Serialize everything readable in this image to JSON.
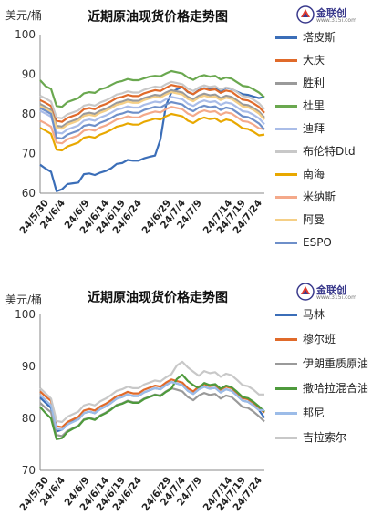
{
  "logo": {
    "brand": "金联创",
    "url": "www.315i.com"
  },
  "chart_data": [
    {
      "type": "line",
      "title": "近期原油现货价格走势图",
      "ylabel": "美元/桶",
      "ylim": [
        60,
        100
      ],
      "yticks": [
        60,
        70,
        80,
        90,
        100
      ],
      "grid": false,
      "legend": "right",
      "x": [
        "24/5/30",
        "24/5/31",
        "24/6/3",
        "24/6/4",
        "24/6/5",
        "24/6/6",
        "24/6/7",
        "24/6/10",
        "24/6/11",
        "24/6/12",
        "24/6/13",
        "24/6/14",
        "24/6/17",
        "24/6/18",
        "24/6/19",
        "24/6/20",
        "24/6/21",
        "24/6/24",
        "24/6/25",
        "24/6/26",
        "24/6/27",
        "24/6/28",
        "24/7/1",
        "24/7/2",
        "24/7/3",
        "24/7/4",
        "24/7/5",
        "24/7/8",
        "24/7/9",
        "24/7/10",
        "24/7/11",
        "24/7/12",
        "24/7/15",
        "24/7/16",
        "24/7/17",
        "24/7/18",
        "24/7/19",
        "24/7/22",
        "24/7/23",
        "24/7/24",
        "24/7/25",
        "24/7/26"
      ],
      "xtick_labels": [
        "24/5/30",
        "24/6/4",
        "24/6/9",
        "24/6/14",
        "24/6/19",
        "24/6/24",
        "24/6/29",
        "24/7/4",
        "24/7/9",
        "24/7/14",
        "24/7/19",
        "24/7/24"
      ],
      "series": [
        {
          "name": "塔皮斯",
          "color": "#3b6eb8",
          "values": [
            67.2,
            66.2,
            65.4,
            60.5,
            61.0,
            62.3,
            62.5,
            62.7,
            64.8,
            65.0,
            64.6,
            65.2,
            65.6,
            66.3,
            67.4,
            67.6,
            68.4,
            68.2,
            68.2,
            68.8,
            69.2,
            69.5,
            73.6,
            82.1,
            85.4,
            86.2,
            86.8,
            85.5,
            85.0,
            86.0,
            86.5,
            86.2,
            86.4,
            85.8,
            86.6,
            86.3,
            85.6,
            85.0,
            84.8,
            84.4,
            84.0,
            84.3
          ]
        },
        {
          "name": "大庆",
          "color": "#e06a2a",
          "values": [
            83.5,
            82.8,
            82.0,
            78.3,
            78.0,
            79.0,
            79.5,
            80.0,
            81.2,
            81.5,
            81.2,
            82.0,
            82.5,
            83.2,
            84.0,
            84.3,
            84.8,
            84.5,
            84.5,
            85.2,
            85.6,
            86.0,
            85.8,
            86.6,
            87.3,
            87.0,
            86.8,
            85.6,
            85.0,
            85.9,
            86.4,
            86.0,
            86.2,
            85.3,
            85.9,
            85.6,
            84.6,
            83.6,
            83.4,
            82.7,
            81.8,
            80.3
          ]
        },
        {
          "name": "胜利",
          "color": "#9a9a9a",
          "values": [
            82.5,
            81.8,
            81.0,
            77.0,
            76.8,
            77.8,
            78.3,
            78.8,
            80.0,
            80.3,
            80.0,
            80.8,
            81.3,
            82.0,
            82.8,
            83.1,
            83.6,
            83.3,
            83.3,
            84.0,
            84.4,
            84.8,
            84.6,
            85.4,
            86.0,
            85.7,
            85.4,
            84.3,
            83.7,
            84.6,
            85.1,
            84.7,
            84.9,
            84.0,
            84.6,
            84.3,
            83.4,
            82.4,
            82.2,
            81.5,
            80.6,
            79.1
          ]
        },
        {
          "name": "杜里",
          "color": "#6aa84f",
          "values": [
            88.5,
            87.0,
            86.3,
            82.0,
            81.8,
            83.0,
            83.5,
            84.0,
            85.2,
            85.5,
            85.3,
            86.2,
            86.6,
            87.3,
            88.0,
            88.3,
            88.8,
            88.5,
            88.5,
            89.0,
            89.4,
            89.6,
            89.5,
            90.2,
            90.8,
            90.5,
            90.2,
            89.2,
            88.6,
            89.4,
            89.8,
            89.4,
            89.6,
            88.7,
            89.2,
            88.9,
            88.0,
            87.1,
            86.9,
            86.2,
            85.4,
            84.2
          ]
        },
        {
          "name": "迪拜",
          "color": "#aabde8",
          "values": [
            80.8,
            80.1,
            79.3,
            75.3,
            75.1,
            76.1,
            76.6,
            77.1,
            78.3,
            78.6,
            78.3,
            79.1,
            79.6,
            80.3,
            81.1,
            81.4,
            81.9,
            81.6,
            81.6,
            82.3,
            82.7,
            83.1,
            82.9,
            83.7,
            84.3,
            84.0,
            83.7,
            82.6,
            82.0,
            82.9,
            83.4,
            83.0,
            83.2,
            82.3,
            82.9,
            82.6,
            81.7,
            80.7,
            80.5,
            79.8,
            78.9,
            77.4
          ]
        },
        {
          "name": "布伦特Dtd",
          "color": "#c8c8c8",
          "values": [
            84.6,
            83.9,
            83.1,
            79.1,
            78.9,
            79.9,
            80.4,
            80.9,
            82.1,
            82.4,
            82.1,
            82.9,
            83.4,
            84.1,
            84.9,
            85.2,
            85.7,
            85.4,
            85.4,
            86.1,
            86.5,
            86.9,
            86.7,
            87.5,
            88.1,
            87.8,
            87.5,
            86.4,
            85.8,
            86.7,
            87.2,
            86.8,
            87.0,
            86.1,
            86.7,
            86.4,
            85.5,
            84.5,
            84.3,
            83.6,
            82.7,
            81.2
          ]
        },
        {
          "name": "南海",
          "color": "#e8a800",
          "values": [
            76.5,
            75.8,
            75.0,
            71.0,
            70.8,
            71.8,
            72.3,
            72.8,
            74.0,
            74.3,
            74.0,
            74.8,
            75.3,
            76.0,
            76.8,
            77.1,
            77.6,
            77.3,
            77.3,
            78.0,
            78.4,
            78.8,
            78.6,
            79.4,
            80.0,
            79.7,
            79.4,
            78.3,
            77.7,
            78.6,
            79.1,
            78.7,
            78.9,
            78.0,
            78.6,
            78.3,
            77.4,
            76.4,
            76.2,
            75.5,
            74.6,
            74.8
          ]
        },
        {
          "name": "米纳斯",
          "color": "#f4a98a",
          "values": [
            78.3,
            77.6,
            76.8,
            72.8,
            72.6,
            73.6,
            74.1,
            74.6,
            75.8,
            76.1,
            75.8,
            76.6,
            77.1,
            77.8,
            78.6,
            78.9,
            79.4,
            79.1,
            79.1,
            79.8,
            80.2,
            80.6,
            80.4,
            81.2,
            81.8,
            81.5,
            81.2,
            80.1,
            79.5,
            80.4,
            80.9,
            80.5,
            80.7,
            79.8,
            80.4,
            80.1,
            79.2,
            78.2,
            78.0,
            77.3,
            76.4,
            76.2
          ]
        },
        {
          "name": "阿曼",
          "color": "#f5cf86",
          "values": [
            82.0,
            81.3,
            80.5,
            76.5,
            76.3,
            77.3,
            77.8,
            78.3,
            79.5,
            79.8,
            79.5,
            80.3,
            80.8,
            81.5,
            82.3,
            82.6,
            83.1,
            82.8,
            82.8,
            83.5,
            83.9,
            84.3,
            84.1,
            84.9,
            85.5,
            85.2,
            84.9,
            83.8,
            83.2,
            84.1,
            84.6,
            84.2,
            84.4,
            83.5,
            84.1,
            83.8,
            82.9,
            81.9,
            81.7,
            81.0,
            80.1,
            78.6
          ]
        },
        {
          "name": "ESPO",
          "color": "#6e8fc9",
          "values": [
            81.5,
            80.8,
            80.0,
            74.0,
            73.8,
            74.8,
            75.3,
            75.8,
            77.0,
            77.3,
            77.0,
            77.8,
            78.3,
            79.0,
            79.8,
            80.1,
            80.6,
            80.3,
            80.3,
            81.0,
            81.4,
            81.8,
            81.6,
            82.4,
            83.0,
            82.7,
            82.4,
            81.3,
            80.7,
            81.6,
            82.1,
            81.7,
            81.9,
            81.0,
            81.6,
            81.3,
            80.4,
            79.4,
            79.2,
            78.5,
            77.6,
            76.1
          ]
        }
      ]
    },
    {
      "type": "line",
      "title": "近期原油现货价格走势图",
      "ylabel": "美元/桶",
      "ylim": [
        70,
        100
      ],
      "yticks": [
        70,
        80,
        90,
        100
      ],
      "grid": false,
      "legend": "right",
      "x": [
        "24/5/30",
        "24/5/31",
        "24/6/3",
        "24/6/4",
        "24/6/5",
        "24/6/6",
        "24/6/7",
        "24/6/10",
        "24/6/11",
        "24/6/12",
        "24/6/13",
        "24/6/14",
        "24/6/17",
        "24/6/18",
        "24/6/19",
        "24/6/20",
        "24/6/21",
        "24/6/24",
        "24/6/25",
        "24/6/26",
        "24/6/27",
        "24/6/28",
        "24/7/1",
        "24/7/2",
        "24/7/3",
        "24/7/4",
        "24/7/5",
        "24/7/8",
        "24/7/9",
        "24/7/10",
        "24/7/11",
        "24/7/12",
        "24/7/15",
        "24/7/16",
        "24/7/17",
        "24/7/18",
        "24/7/19",
        "24/7/22",
        "24/7/23",
        "24/7/24",
        "24/7/25",
        "24/7/26"
      ],
      "xtick_labels": [
        "24/5/30",
        "24/6/4",
        "24/6/9",
        "24/6/14",
        "24/6/19",
        "24/6/24",
        "24/6/29",
        "24/7/4",
        "24/7/9",
        "24/7/14",
        "24/7/19",
        "24/7/24"
      ],
      "series": [
        {
          "name": "马林",
          "color": "#3b6eb8",
          "values": [
            84.0,
            83.0,
            82.0,
            77.5,
            77.8,
            78.8,
            79.4,
            79.8,
            81.0,
            81.3,
            81.0,
            81.8,
            82.3,
            83.0,
            83.8,
            84.1,
            84.6,
            84.3,
            84.3,
            85.0,
            85.4,
            85.8,
            85.6,
            86.4,
            87.0,
            86.7,
            86.4,
            85.3,
            84.7,
            85.6,
            86.1,
            85.7,
            85.9,
            85.0,
            85.6,
            85.3,
            84.4,
            83.4,
            83.2,
            82.5,
            81.6,
            80.1
          ]
        },
        {
          "name": "穆尔班",
          "color": "#e06a2a",
          "values": [
            85.2,
            84.2,
            83.4,
            78.5,
            78.3,
            79.3,
            79.8,
            80.3,
            81.5,
            81.8,
            81.5,
            82.3,
            82.8,
            83.5,
            84.3,
            84.6,
            85.1,
            84.8,
            84.8,
            85.5,
            85.9,
            86.3,
            86.1,
            86.9,
            87.5,
            87.2,
            86.9,
            85.8,
            85.2,
            86.1,
            86.6,
            86.2,
            86.4,
            85.5,
            86.1,
            85.8,
            84.9,
            83.9,
            83.7,
            83.0,
            82.1,
            81.1
          ]
        },
        {
          "name": "伊朗重质原油",
          "color": "#9a9a9a",
          "values": [
            83.0,
            82.0,
            81.2,
            76.8,
            76.6,
            77.6,
            78.1,
            78.6,
            79.8,
            80.1,
            79.8,
            80.6,
            81.1,
            81.8,
            82.6,
            82.9,
            83.4,
            83.1,
            83.1,
            83.8,
            84.2,
            84.6,
            84.4,
            85.2,
            85.8,
            85.5,
            85.2,
            84.1,
            83.5,
            84.4,
            84.9,
            84.5,
            84.7,
            83.8,
            84.4,
            84.1,
            83.2,
            82.2,
            82.0,
            81.3,
            80.4,
            79.4
          ]
        },
        {
          "name": "撒哈拉混合油",
          "color": "#4e9a3c",
          "values": [
            82.2,
            81.0,
            80.0,
            76.0,
            76.2,
            77.4,
            78.0,
            78.5,
            79.7,
            80.0,
            79.7,
            80.5,
            81.0,
            81.7,
            82.5,
            82.8,
            83.3,
            83.0,
            83.0,
            83.7,
            84.1,
            84.5,
            84.3,
            85.1,
            85.7,
            87.6,
            88.4,
            87.2,
            86.4,
            85.8,
            86.8,
            86.4,
            86.6,
            85.7,
            86.3,
            86.0,
            85.1,
            84.1,
            83.9,
            83.2,
            82.3,
            81.3
          ]
        },
        {
          "name": "邦尼",
          "color": "#9cbce8",
          "values": [
            84.5,
            83.5,
            82.5,
            78.0,
            77.8,
            78.8,
            79.3,
            79.8,
            81.0,
            81.3,
            81.0,
            81.8,
            82.3,
            83.0,
            83.8,
            84.1,
            84.6,
            84.3,
            84.3,
            85.0,
            85.4,
            85.8,
            85.6,
            86.4,
            87.0,
            86.7,
            86.4,
            85.3,
            84.7,
            85.6,
            86.1,
            85.7,
            85.9,
            85.0,
            85.6,
            85.3,
            84.4,
            83.4,
            83.2,
            82.5,
            81.6,
            81.6
          ]
        },
        {
          "name": "吉拉索尔",
          "color": "#c8c8c8",
          "values": [
            85.8,
            84.8,
            83.8,
            79.5,
            79.3,
            80.3,
            80.8,
            81.3,
            82.5,
            82.8,
            82.5,
            83.3,
            83.8,
            84.5,
            85.3,
            85.6,
            86.1,
            85.8,
            85.8,
            86.5,
            86.9,
            87.3,
            87.1,
            87.9,
            88.5,
            90.2,
            90.9,
            89.8,
            89.0,
            88.2,
            89.1,
            88.7,
            88.9,
            88.0,
            88.6,
            88.3,
            87.4,
            86.4,
            86.2,
            85.5,
            84.6,
            84.6
          ]
        }
      ]
    }
  ]
}
